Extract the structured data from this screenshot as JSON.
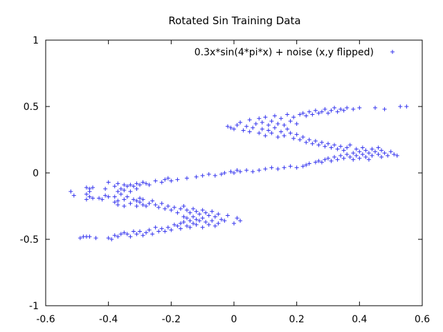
{
  "chart_data": {
    "type": "scatter",
    "title": "Rotated Sin Training Data",
    "xlabel": "",
    "ylabel": "",
    "xlim": [
      -0.6,
      0.6
    ],
    "ylim": [
      -1,
      1
    ],
    "xticks": [
      {
        "value": -0.6,
        "label": "-0.6"
      },
      {
        "value": -0.4,
        "label": "-0.4"
      },
      {
        "value": -0.2,
        "label": "-0.2"
      },
      {
        "value": 0,
        "label": "0"
      },
      {
        "value": 0.2,
        "label": "0.2"
      },
      {
        "value": 0.4,
        "label": "0.4"
      },
      {
        "value": 0.6,
        "label": "0.6"
      }
    ],
    "yticks": [
      {
        "value": -1,
        "label": "-1"
      },
      {
        "value": -0.5,
        "label": "-0.5"
      },
      {
        "value": 0,
        "label": "0"
      },
      {
        "value": 0.5,
        "label": "0.5"
      },
      {
        "value": 1,
        "label": "1"
      }
    ],
    "grid": false,
    "legend_position": "top-right",
    "series": [
      {
        "name": "0.3x*sin(4*pi*x) + noise (x,y flipped)",
        "color": "#3333ee",
        "marker": "plus",
        "points": [
          [
            -0.52,
            -0.14
          ],
          [
            -0.51,
            -0.17
          ],
          [
            -0.49,
            -0.49
          ],
          [
            -0.48,
            -0.48
          ],
          [
            -0.47,
            -0.11
          ],
          [
            -0.47,
            -0.16
          ],
          [
            -0.47,
            -0.2
          ],
          [
            -0.47,
            -0.48
          ],
          [
            -0.46,
            -0.12
          ],
          [
            -0.46,
            -0.14
          ],
          [
            -0.46,
            -0.18
          ],
          [
            -0.46,
            -0.48
          ],
          [
            -0.45,
            -0.11
          ],
          [
            -0.45,
            -0.19
          ],
          [
            -0.44,
            -0.49
          ],
          [
            -0.43,
            -0.19
          ],
          [
            -0.42,
            -0.2
          ],
          [
            -0.41,
            -0.12
          ],
          [
            -0.41,
            -0.17
          ],
          [
            -0.4,
            -0.07
          ],
          [
            -0.4,
            -0.18
          ],
          [
            -0.4,
            -0.49
          ],
          [
            -0.39,
            -0.5
          ],
          [
            -0.38,
            -0.1
          ],
          [
            -0.38,
            -0.18
          ],
          [
            -0.38,
            -0.22
          ],
          [
            -0.38,
            -0.47
          ],
          [
            -0.37,
            -0.08
          ],
          [
            -0.37,
            -0.14
          ],
          [
            -0.37,
            -0.21
          ],
          [
            -0.37,
            -0.24
          ],
          [
            -0.37,
            -0.48
          ],
          [
            -0.36,
            -0.12
          ],
          [
            -0.36,
            -0.16
          ],
          [
            -0.36,
            -0.46
          ],
          [
            -0.35,
            -0.09
          ],
          [
            -0.35,
            -0.13
          ],
          [
            -0.35,
            -0.2
          ],
          [
            -0.35,
            -0.25
          ],
          [
            -0.35,
            -0.45
          ],
          [
            -0.34,
            -0.1
          ],
          [
            -0.34,
            -0.18
          ],
          [
            -0.34,
            -0.46
          ],
          [
            -0.33,
            -0.09
          ],
          [
            -0.33,
            -0.14
          ],
          [
            -0.33,
            -0.23
          ],
          [
            -0.33,
            -0.48
          ],
          [
            -0.32,
            -0.1
          ],
          [
            -0.32,
            -0.2
          ],
          [
            -0.32,
            -0.44
          ],
          [
            -0.31,
            -0.08
          ],
          [
            -0.31,
            -0.12
          ],
          [
            -0.31,
            -0.21
          ],
          [
            -0.31,
            -0.25
          ],
          [
            -0.31,
            -0.46
          ],
          [
            -0.3,
            -0.09
          ],
          [
            -0.3,
            -0.19
          ],
          [
            -0.3,
            -0.22
          ],
          [
            -0.3,
            -0.44
          ],
          [
            -0.29,
            -0.07
          ],
          [
            -0.29,
            -0.2
          ],
          [
            -0.29,
            -0.24
          ],
          [
            -0.29,
            -0.47
          ],
          [
            -0.28,
            -0.08
          ],
          [
            -0.28,
            -0.25
          ],
          [
            -0.28,
            -0.45
          ],
          [
            -0.27,
            -0.09
          ],
          [
            -0.27,
            -0.23
          ],
          [
            -0.27,
            -0.43
          ],
          [
            -0.26,
            -0.21
          ],
          [
            -0.26,
            -0.46
          ],
          [
            -0.25,
            -0.06
          ],
          [
            -0.25,
            -0.24
          ],
          [
            -0.25,
            -0.41
          ],
          [
            -0.24,
            -0.26
          ],
          [
            -0.24,
            -0.44
          ],
          [
            -0.23,
            -0.07
          ],
          [
            -0.23,
            -0.23
          ],
          [
            -0.23,
            -0.42
          ],
          [
            -0.22,
            -0.05
          ],
          [
            -0.22,
            -0.27
          ],
          [
            -0.22,
            -0.44
          ],
          [
            -0.21,
            -0.04
          ],
          [
            -0.21,
            -0.25
          ],
          [
            -0.21,
            -0.41
          ],
          [
            -0.2,
            -0.06
          ],
          [
            -0.2,
            -0.28
          ],
          [
            -0.2,
            -0.43
          ],
          [
            -0.19,
            -0.26
          ],
          [
            -0.19,
            -0.39
          ],
          [
            -0.18,
            -0.05
          ],
          [
            -0.18,
            -0.3
          ],
          [
            -0.18,
            -0.4
          ],
          [
            -0.17,
            -0.27
          ],
          [
            -0.17,
            -0.38
          ],
          [
            -0.17,
            -0.42
          ],
          [
            -0.16,
            -0.25
          ],
          [
            -0.16,
            -0.33
          ],
          [
            -0.16,
            -0.37
          ],
          [
            -0.15,
            -0.04
          ],
          [
            -0.15,
            -0.28
          ],
          [
            -0.15,
            -0.34
          ],
          [
            -0.15,
            -0.4
          ],
          [
            -0.14,
            -0.3
          ],
          [
            -0.14,
            -0.36
          ],
          [
            -0.14,
            -0.41
          ],
          [
            -0.13,
            -0.27
          ],
          [
            -0.13,
            -0.33
          ],
          [
            -0.13,
            -0.38
          ],
          [
            -0.12,
            -0.03
          ],
          [
            -0.12,
            -0.29
          ],
          [
            -0.12,
            -0.35
          ],
          [
            -0.12,
            -0.39
          ],
          [
            -0.11,
            -0.31
          ],
          [
            -0.11,
            -0.36
          ],
          [
            -0.1,
            -0.02
          ],
          [
            -0.1,
            -0.28
          ],
          [
            -0.1,
            -0.34
          ],
          [
            -0.1,
            -0.41
          ],
          [
            -0.09,
            -0.3
          ],
          [
            -0.09,
            -0.37
          ],
          [
            -0.08,
            -0.01
          ],
          [
            -0.08,
            -0.32
          ],
          [
            -0.08,
            -0.39
          ],
          [
            -0.07,
            -0.29
          ],
          [
            -0.07,
            -0.36
          ],
          [
            -0.06,
            -0.02
          ],
          [
            -0.06,
            -0.33
          ],
          [
            -0.06,
            -0.4
          ],
          [
            -0.05,
            -0.31
          ],
          [
            -0.05,
            -0.38
          ],
          [
            -0.04,
            -0.01
          ],
          [
            -0.04,
            -0.35
          ],
          [
            -0.03,
            0.0
          ],
          [
            -0.03,
            -0.36
          ],
          [
            -0.02,
            -0.32
          ],
          [
            -0.02,
            0.35
          ],
          [
            -0.01,
            0.01
          ],
          [
            -0.01,
            0.34
          ],
          [
            0.0,
            0.0
          ],
          [
            0.0,
            0.33
          ],
          [
            0.0,
            -0.38
          ],
          [
            0.01,
            0.02
          ],
          [
            0.01,
            0.36
          ],
          [
            0.01,
            -0.34
          ],
          [
            0.02,
            0.01
          ],
          [
            0.02,
            0.38
          ],
          [
            0.02,
            -0.36
          ],
          [
            0.03,
            0.32
          ],
          [
            0.04,
            0.02
          ],
          [
            0.04,
            0.35
          ],
          [
            0.05,
            0.31
          ],
          [
            0.05,
            0.4
          ],
          [
            0.06,
            0.01
          ],
          [
            0.06,
            0.34
          ],
          [
            0.07,
            0.37
          ],
          [
            0.08,
            0.02
          ],
          [
            0.08,
            0.3
          ],
          [
            0.08,
            0.41
          ],
          [
            0.09,
            0.33
          ],
          [
            0.09,
            0.38
          ],
          [
            0.1,
            0.03
          ],
          [
            0.1,
            0.28
          ],
          [
            0.1,
            0.42
          ],
          [
            0.11,
            0.32
          ],
          [
            0.11,
            0.36
          ],
          [
            0.12,
            0.04
          ],
          [
            0.12,
            0.3
          ],
          [
            0.12,
            0.39
          ],
          [
            0.13,
            0.34
          ],
          [
            0.13,
            0.43
          ],
          [
            0.14,
            0.03
          ],
          [
            0.14,
            0.27
          ],
          [
            0.14,
            0.37
          ],
          [
            0.15,
            0.31
          ],
          [
            0.15,
            0.41
          ],
          [
            0.16,
            0.04
          ],
          [
            0.16,
            0.28
          ],
          [
            0.16,
            0.36
          ],
          [
            0.17,
            0.33
          ],
          [
            0.17,
            0.44
          ],
          [
            0.18,
            0.05
          ],
          [
            0.18,
            0.3
          ],
          [
            0.18,
            0.39
          ],
          [
            0.19,
            0.26
          ],
          [
            0.19,
            0.42
          ],
          [
            0.2,
            0.04
          ],
          [
            0.2,
            0.29
          ],
          [
            0.2,
            0.37
          ],
          [
            0.21,
            0.25
          ],
          [
            0.21,
            0.44
          ],
          [
            0.22,
            0.05
          ],
          [
            0.22,
            0.27
          ],
          [
            0.22,
            0.45
          ],
          [
            0.23,
            0.06
          ],
          [
            0.23,
            0.23
          ],
          [
            0.23,
            0.43
          ],
          [
            0.24,
            0.07
          ],
          [
            0.24,
            0.25
          ],
          [
            0.24,
            0.46
          ],
          [
            0.25,
            0.22
          ],
          [
            0.25,
            0.44
          ],
          [
            0.26,
            0.08
          ],
          [
            0.26,
            0.24
          ],
          [
            0.26,
            0.47
          ],
          [
            0.27,
            0.09
          ],
          [
            0.27,
            0.21
          ],
          [
            0.27,
            0.45
          ],
          [
            0.28,
            0.08
          ],
          [
            0.28,
            0.23
          ],
          [
            0.28,
            0.46
          ],
          [
            0.29,
            0.1
          ],
          [
            0.29,
            0.2
          ],
          [
            0.29,
            0.48
          ],
          [
            0.3,
            0.11
          ],
          [
            0.3,
            0.22
          ],
          [
            0.3,
            0.45
          ],
          [
            0.31,
            0.09
          ],
          [
            0.31,
            0.19
          ],
          [
            0.31,
            0.47
          ],
          [
            0.32,
            0.12
          ],
          [
            0.32,
            0.21
          ],
          [
            0.32,
            0.49
          ],
          [
            0.33,
            0.1
          ],
          [
            0.33,
            0.18
          ],
          [
            0.33,
            0.46
          ],
          [
            0.34,
            0.13
          ],
          [
            0.34,
            0.2
          ],
          [
            0.34,
            0.48
          ],
          [
            0.35,
            0.11
          ],
          [
            0.35,
            0.17
          ],
          [
            0.35,
            0.47
          ],
          [
            0.36,
            0.14
          ],
          [
            0.36,
            0.19
          ],
          [
            0.36,
            0.49
          ],
          [
            0.37,
            0.12
          ],
          [
            0.37,
            0.21
          ],
          [
            0.38,
            0.15
          ],
          [
            0.38,
            0.1
          ],
          [
            0.38,
            0.48
          ],
          [
            0.39,
            0.13
          ],
          [
            0.39,
            0.18
          ],
          [
            0.4,
            0.16
          ],
          [
            0.4,
            0.11
          ],
          [
            0.4,
            0.49
          ],
          [
            0.41,
            0.14
          ],
          [
            0.41,
            0.19
          ],
          [
            0.42,
            0.12
          ],
          [
            0.42,
            0.17
          ],
          [
            0.43,
            0.15
          ],
          [
            0.43,
            0.1
          ],
          [
            0.44,
            0.18
          ],
          [
            0.44,
            0.13
          ],
          [
            0.45,
            0.16
          ],
          [
            0.45,
            0.49
          ],
          [
            0.46,
            0.14
          ],
          [
            0.46,
            0.19
          ],
          [
            0.47,
            0.12
          ],
          [
            0.47,
            0.17
          ],
          [
            0.48,
            0.15
          ],
          [
            0.48,
            0.48
          ],
          [
            0.49,
            0.13
          ],
          [
            0.5,
            0.16
          ],
          [
            0.51,
            0.14
          ],
          [
            0.52,
            0.13
          ],
          [
            0.53,
            0.5
          ],
          [
            0.55,
            0.5
          ]
        ]
      }
    ]
  }
}
